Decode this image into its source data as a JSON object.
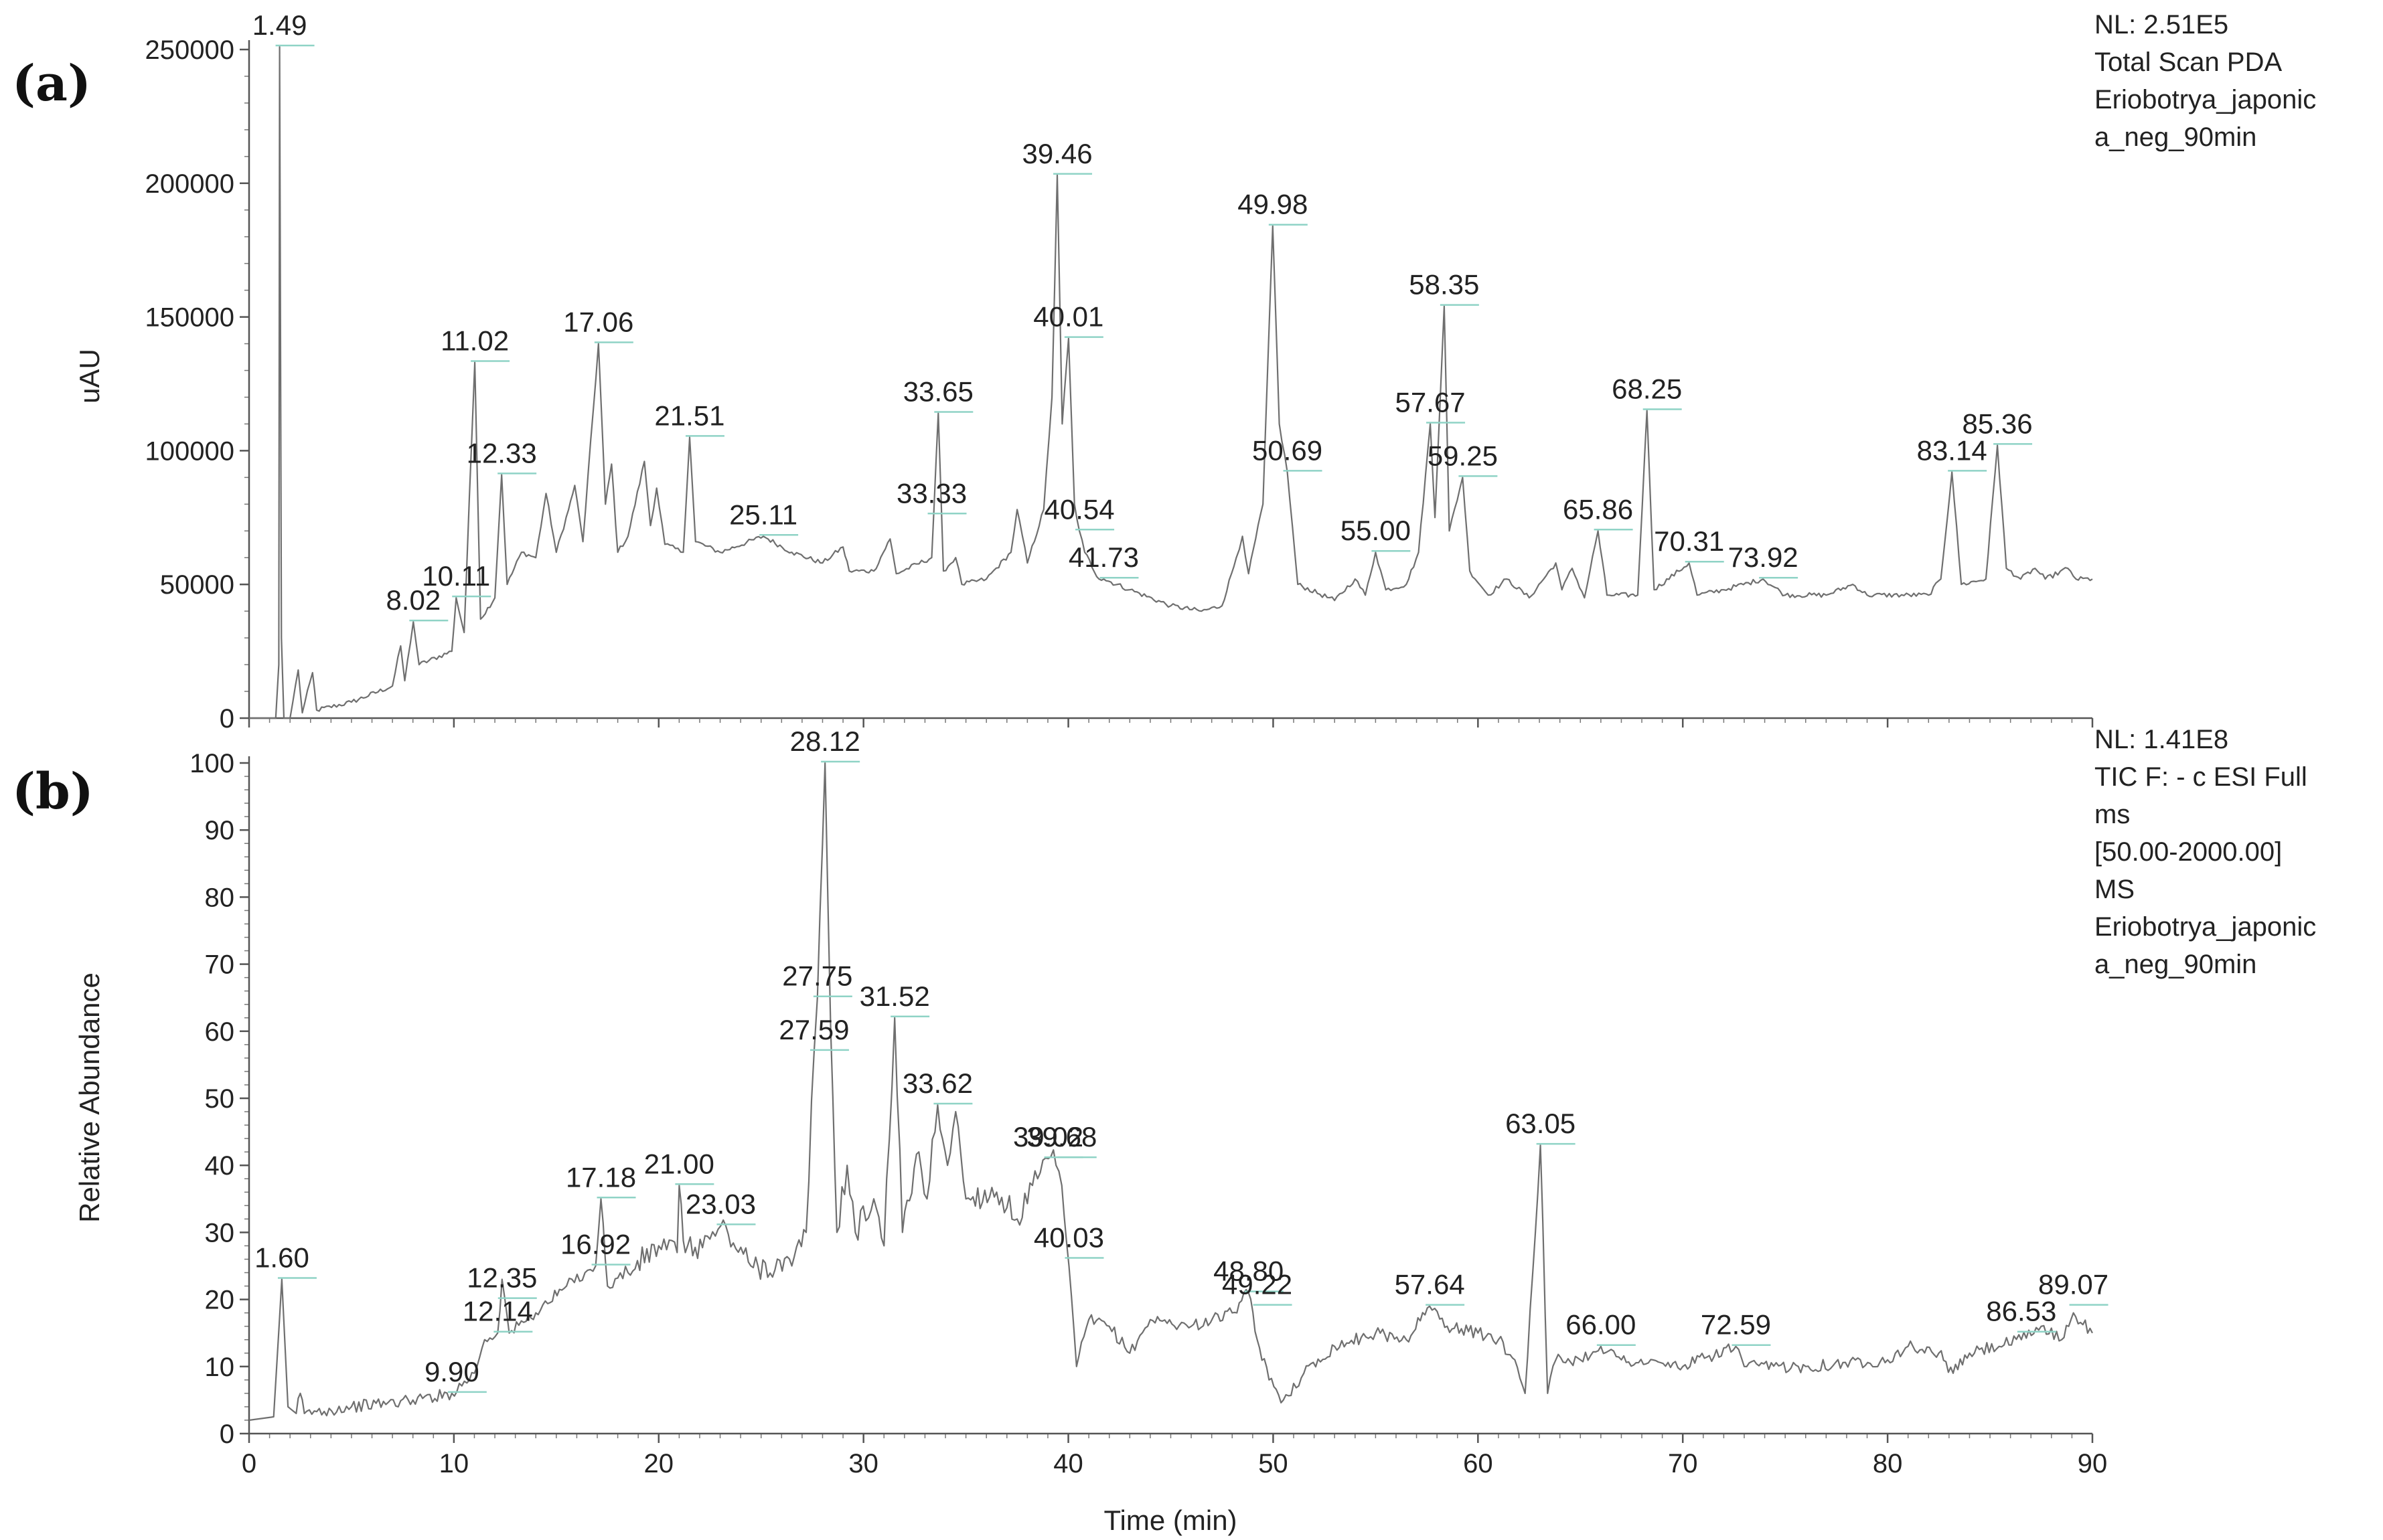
{
  "panels": [
    {
      "id": "a",
      "tag": "(a)",
      "info_lines": [
        "NL: 2.51E5",
        "Total Scan  PDA",
        "Eriobotrya_japonic",
        "a_neg_90min"
      ],
      "ylabel": "uAU",
      "xlabel": "",
      "y_ticks": [
        "0",
        "50000",
        "100000",
        "150000",
        "200000",
        "250000"
      ],
      "x_ticks": []
    },
    {
      "id": "b",
      "tag": "(b)",
      "info_lines": [
        "NL: 1.41E8",
        "TIC F: - c ESI Full",
        "ms",
        "[50.00-2000.00]",
        "MS",
        "Eriobotrya_japonic",
        "a_neg_90min"
      ],
      "ylabel": "Relative Abundance",
      "xlabel": "Time (min)",
      "y_ticks": [
        "0",
        "10",
        "20",
        "30",
        "40",
        "50",
        "60",
        "70",
        "80",
        "90",
        "100"
      ],
      "x_ticks": [
        "0",
        "10",
        "20",
        "30",
        "40",
        "50",
        "60",
        "70",
        "80",
        "90"
      ]
    }
  ],
  "chart_data": [
    {
      "type": "line",
      "title": "",
      "xlabel": "",
      "ylabel": "uAU",
      "xlim": [
        0,
        90
      ],
      "ylim": [
        0,
        251000
      ],
      "grid": false,
      "baseline": [
        [
          0,
          0
        ],
        [
          1.3,
          0
        ],
        [
          1.45,
          20000
        ],
        [
          1.49,
          251000
        ],
        [
          1.58,
          30000
        ],
        [
          1.7,
          0
        ],
        [
          2.0,
          0
        ],
        [
          2.4,
          18000
        ],
        [
          2.6,
          2000
        ],
        [
          3.1,
          17000
        ],
        [
          3.3,
          3000
        ],
        [
          5,
          6000
        ],
        [
          7,
          12000
        ],
        [
          7.4,
          27000
        ],
        [
          7.6,
          14000
        ],
        [
          8.02,
          36000
        ],
        [
          8.3,
          20000
        ],
        [
          9.9,
          25000
        ],
        [
          10.11,
          45000
        ],
        [
          10.5,
          32000
        ],
        [
          11.02,
          133000
        ],
        [
          11.3,
          37000
        ],
        [
          12,
          45000
        ],
        [
          12.33,
          91000
        ],
        [
          12.6,
          50000
        ],
        [
          13.3,
          62000
        ],
        [
          14,
          60000
        ],
        [
          14.5,
          84000
        ],
        [
          15,
          62000
        ],
        [
          15.6,
          78000
        ],
        [
          15.9,
          87000
        ],
        [
          16.3,
          66000
        ],
        [
          17.06,
          140000
        ],
        [
          17.4,
          80000
        ],
        [
          17.7,
          95000
        ],
        [
          18,
          62000
        ],
        [
          18.5,
          68000
        ],
        [
          19.3,
          96000
        ],
        [
          19.6,
          72000
        ],
        [
          19.9,
          86000
        ],
        [
          20.3,
          65000
        ],
        [
          21.2,
          62000
        ],
        [
          21.51,
          105000
        ],
        [
          21.8,
          66000
        ],
        [
          23,
          62000
        ],
        [
          25.11,
          68000
        ],
        [
          26.5,
          62000
        ],
        [
          28,
          58000
        ],
        [
          29,
          64000
        ],
        [
          29.3,
          55000
        ],
        [
          30.5,
          55000
        ],
        [
          31.3,
          67000
        ],
        [
          31.6,
          54000
        ],
        [
          33.33,
          60000
        ],
        [
          33.65,
          114000
        ],
        [
          33.9,
          55000
        ],
        [
          34.5,
          60000
        ],
        [
          34.8,
          50000
        ],
        [
          36,
          52000
        ],
        [
          37.2,
          62000
        ],
        [
          37.5,
          78000
        ],
        [
          38,
          58000
        ],
        [
          38.8,
          78000
        ],
        [
          39.2,
          120000
        ],
        [
          39.46,
          203000
        ],
        [
          39.7,
          110000
        ],
        [
          40.01,
          142000
        ],
        [
          40.3,
          80000
        ],
        [
          40.54,
          70000
        ],
        [
          40.8,
          62000
        ],
        [
          41.5,
          52000
        ],
        [
          41.73,
          52000
        ],
        [
          43,
          48000
        ],
        [
          45,
          42000
        ],
        [
          46.5,
          40000
        ],
        [
          47.5,
          42000
        ],
        [
          48.2,
          60000
        ],
        [
          48.5,
          68000
        ],
        [
          48.8,
          54000
        ],
        [
          49.5,
          80000
        ],
        [
          49.98,
          184000
        ],
        [
          50.3,
          110000
        ],
        [
          50.69,
          92000
        ],
        [
          51.2,
          50000
        ],
        [
          53,
          44000
        ],
        [
          54,
          52000
        ],
        [
          54.5,
          46000
        ],
        [
          55,
          62000
        ],
        [
          55.5,
          48000
        ],
        [
          56.5,
          50000
        ],
        [
          57.1,
          62000
        ],
        [
          57.67,
          110000
        ],
        [
          57.9,
          75000
        ],
        [
          58.35,
          154000
        ],
        [
          58.6,
          70000
        ],
        [
          59.25,
          90000
        ],
        [
          59.6,
          55000
        ],
        [
          60.5,
          46000
        ],
        [
          61.4,
          52000
        ],
        [
          62.5,
          45000
        ],
        [
          63.8,
          58000
        ],
        [
          64.1,
          48000
        ],
        [
          64.6,
          56000
        ],
        [
          65.2,
          45000
        ],
        [
          65.86,
          70000
        ],
        [
          66.3,
          46000
        ],
        [
          67.8,
          46000
        ],
        [
          68.25,
          115000
        ],
        [
          68.6,
          48000
        ],
        [
          70.31,
          58000
        ],
        [
          70.7,
          46000
        ],
        [
          72,
          48000
        ],
        [
          73.92,
          52000
        ],
        [
          75,
          46000
        ],
        [
          77,
          46000
        ],
        [
          78.3,
          50000
        ],
        [
          79,
          46000
        ],
        [
          82,
          46000
        ],
        [
          82.6,
          52000
        ],
        [
          83.14,
          92000
        ],
        [
          83.6,
          50000
        ],
        [
          84.8,
          52000
        ],
        [
          85.36,
          102000
        ],
        [
          85.8,
          56000
        ],
        [
          86.5,
          52000
        ],
        [
          87.2,
          56000
        ],
        [
          87.7,
          52000
        ],
        [
          88.8,
          56000
        ],
        [
          89.2,
          52000
        ],
        [
          90,
          52000
        ]
      ],
      "peak_labels": [
        {
          "rt": "1.49",
          "x": 1.49,
          "y": 251000
        },
        {
          "rt": "8.02",
          "x": 8.02,
          "y": 36000
        },
        {
          "rt": "10.11",
          "x": 10.11,
          "y": 45000
        },
        {
          "rt": "11.02",
          "x": 11.02,
          "y": 133000
        },
        {
          "rt": "12.33",
          "x": 12.33,
          "y": 91000
        },
        {
          "rt": "17.06",
          "x": 17.06,
          "y": 140000
        },
        {
          "rt": "21.51",
          "x": 21.51,
          "y": 105000
        },
        {
          "rt": "25.11",
          "x": 25.11,
          "y": 68000
        },
        {
          "rt": "33.33",
          "x": 33.33,
          "y": 76000
        },
        {
          "rt": "33.65",
          "x": 33.65,
          "y": 114000
        },
        {
          "rt": "39.46",
          "x": 39.46,
          "y": 203000
        },
        {
          "rt": "40.01",
          "x": 40.01,
          "y": 142000
        },
        {
          "rt": "40.54",
          "x": 40.54,
          "y": 70000
        },
        {
          "rt": "41.73",
          "x": 41.73,
          "y": 52000
        },
        {
          "rt": "49.98",
          "x": 49.98,
          "y": 184000
        },
        {
          "rt": "50.69",
          "x": 50.69,
          "y": 92000
        },
        {
          "rt": "55.00",
          "x": 55.0,
          "y": 62000
        },
        {
          "rt": "57.67",
          "x": 57.67,
          "y": 110000
        },
        {
          "rt": "58.35",
          "x": 58.35,
          "y": 154000
        },
        {
          "rt": "59.25",
          "x": 59.25,
          "y": 90000
        },
        {
          "rt": "65.86",
          "x": 65.86,
          "y": 70000
        },
        {
          "rt": "68.25",
          "x": 68.25,
          "y": 115000
        },
        {
          "rt": "70.31",
          "x": 70.31,
          "y": 58000
        },
        {
          "rt": "73.92",
          "x": 73.92,
          "y": 52000
        },
        {
          "rt": "83.14",
          "x": 83.14,
          "y": 92000
        },
        {
          "rt": "85.36",
          "x": 85.36,
          "y": 102000
        }
      ]
    },
    {
      "type": "line",
      "title": "",
      "xlabel": "Time (min)",
      "ylabel": "Relative Abundance",
      "xlim": [
        0,
        90
      ],
      "ylim": [
        0,
        100
      ],
      "grid": false,
      "baseline": [
        [
          0,
          2
        ],
        [
          1.2,
          2.5
        ],
        [
          1.6,
          23
        ],
        [
          1.9,
          4
        ],
        [
          2.3,
          3
        ],
        [
          2.5,
          6
        ],
        [
          2.7,
          3
        ],
        [
          5,
          4
        ],
        [
          8,
          5
        ],
        [
          9.9,
          6
        ],
        [
          11,
          9
        ],
        [
          11.5,
          14
        ],
        [
          12.14,
          15
        ],
        [
          12.35,
          23
        ],
        [
          12.7,
          15
        ],
        [
          14,
          18
        ],
        [
          15.5,
          22
        ],
        [
          16.4,
          24
        ],
        [
          16.92,
          25
        ],
        [
          17.18,
          35
        ],
        [
          17.5,
          22
        ],
        [
          18.5,
          24
        ],
        [
          20,
          28
        ],
        [
          20.9,
          27
        ],
        [
          21.0,
          37
        ],
        [
          21.3,
          27
        ],
        [
          22.5,
          29
        ],
        [
          23.03,
          31
        ],
        [
          24.5,
          25
        ],
        [
          26.5,
          25
        ],
        [
          27.2,
          30
        ],
        [
          27.59,
          57
        ],
        [
          27.75,
          65
        ],
        [
          28.12,
          100
        ],
        [
          28.4,
          60
        ],
        [
          28.7,
          30
        ],
        [
          29.2,
          40
        ],
        [
          29.6,
          30
        ],
        [
          30.5,
          35
        ],
        [
          31,
          28
        ],
        [
          31.52,
          62
        ],
        [
          31.9,
          30
        ],
        [
          32.7,
          42
        ],
        [
          33.1,
          35
        ],
        [
          33.62,
          49
        ],
        [
          34.1,
          40
        ],
        [
          34.5,
          48
        ],
        [
          35,
          35
        ],
        [
          36.5,
          36
        ],
        [
          37.5,
          32
        ],
        [
          38.5,
          38
        ],
        [
          39.02,
          41
        ],
        [
          39.4,
          40
        ],
        [
          39.68,
          37
        ],
        [
          40.03,
          25
        ],
        [
          40.4,
          10
        ],
        [
          41,
          17
        ],
        [
          42,
          16
        ],
        [
          43,
          12
        ],
        [
          44,
          17
        ],
        [
          46,
          16
        ],
        [
          48,
          18
        ],
        [
          48.8,
          21
        ],
        [
          49.22,
          14
        ],
        [
          49.8,
          8
        ],
        [
          50.5,
          5
        ],
        [
          51.5,
          9
        ],
        [
          53,
          13
        ],
        [
          55,
          15
        ],
        [
          56.5,
          14
        ],
        [
          57.64,
          19
        ],
        [
          58.5,
          16
        ],
        [
          60,
          15
        ],
        [
          61,
          14
        ],
        [
          61.8,
          11
        ],
        [
          62.3,
          6
        ],
        [
          63.05,
          43
        ],
        [
          63.4,
          6
        ],
        [
          63.8,
          11
        ],
        [
          65,
          11
        ],
        [
          66.0,
          13
        ],
        [
          67,
          11
        ],
        [
          70,
          10
        ],
        [
          72.59,
          13
        ],
        [
          73,
          10
        ],
        [
          76,
          10
        ],
        [
          80,
          11
        ],
        [
          81,
          13
        ],
        [
          82.5,
          12
        ],
        [
          83.2,
          9
        ],
        [
          84,
          12
        ],
        [
          86.53,
          14
        ],
        [
          87.5,
          16
        ],
        [
          88.5,
          14
        ],
        [
          89.07,
          18
        ],
        [
          90,
          15
        ]
      ],
      "peak_labels": [
        {
          "rt": "1.60",
          "x": 1.6,
          "y": 23
        },
        {
          "rt": "9.90",
          "x": 9.9,
          "y": 6
        },
        {
          "rt": "12.14",
          "x": 12.14,
          "y": 15
        },
        {
          "rt": "12.35",
          "x": 12.35,
          "y": 20
        },
        {
          "rt": "16.92",
          "x": 16.92,
          "y": 25
        },
        {
          "rt": "17.18",
          "x": 17.18,
          "y": 35
        },
        {
          "rt": "21.00",
          "x": 21.0,
          "y": 37
        },
        {
          "rt": "23.03",
          "x": 23.03,
          "y": 31
        },
        {
          "rt": "27.59",
          "x": 27.59,
          "y": 57
        },
        {
          "rt": "27.75",
          "x": 27.75,
          "y": 65
        },
        {
          "rt": "28.12",
          "x": 28.12,
          "y": 100
        },
        {
          "rt": "31.52",
          "x": 31.52,
          "y": 62
        },
        {
          "rt": "33.62",
          "x": 33.62,
          "y": 49
        },
        {
          "rt": "39.02",
          "x": 39.02,
          "y": 41
        },
        {
          "rt": "39.68",
          "x": 39.68,
          "y": 41
        },
        {
          "rt": "40.03",
          "x": 40.03,
          "y": 26
        },
        {
          "rt": "48.80",
          "x": 48.8,
          "y": 21
        },
        {
          "rt": "49.22",
          "x": 49.22,
          "y": 19
        },
        {
          "rt": "57.64",
          "x": 57.64,
          "y": 19
        },
        {
          "rt": "63.05",
          "x": 63.05,
          "y": 43
        },
        {
          "rt": "66.00",
          "x": 66.0,
          "y": 13
        },
        {
          "rt": "72.59",
          "x": 72.59,
          "y": 13
        },
        {
          "rt": "86.53",
          "x": 86.53,
          "y": 15
        },
        {
          "rt": "89.07",
          "x": 89.07,
          "y": 19
        }
      ]
    }
  ]
}
